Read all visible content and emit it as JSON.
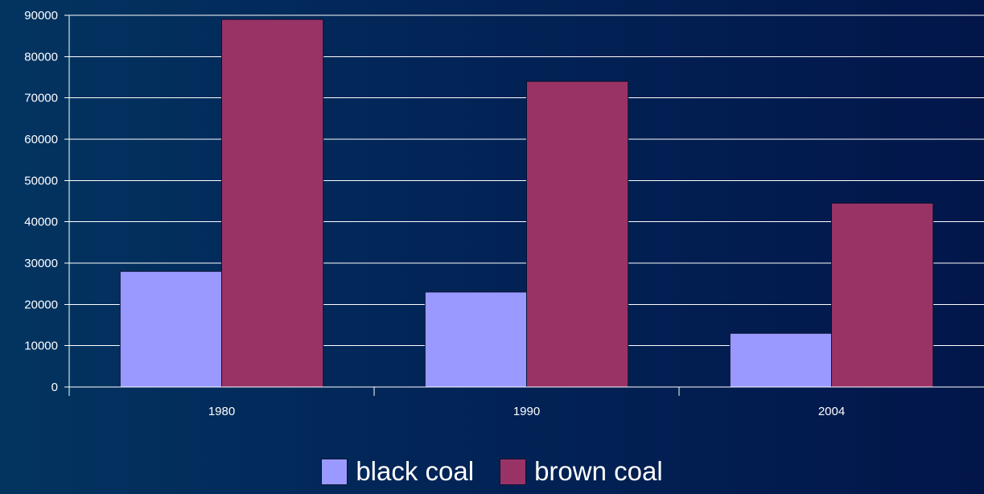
{
  "chart_data": {
    "type": "bar",
    "categories": [
      "1980",
      "1990",
      "2004"
    ],
    "series": [
      {
        "name": "black coal",
        "values": [
          28000,
          23000,
          13000
        ],
        "color": "#9999ff"
      },
      {
        "name": "brown coal",
        "values": [
          89000,
          74000,
          44500
        ],
        "color": "#993366"
      }
    ],
    "ylim": [
      0,
      90000
    ],
    "yticks": [
      "0",
      "10000",
      "20000",
      "30000",
      "40000",
      "50000",
      "60000",
      "70000",
      "80000",
      "90000"
    ],
    "grid": true,
    "legend_position": "bottom-center",
    "gridline_color": "#ffffff",
    "axis_color": "#ffffff"
  }
}
